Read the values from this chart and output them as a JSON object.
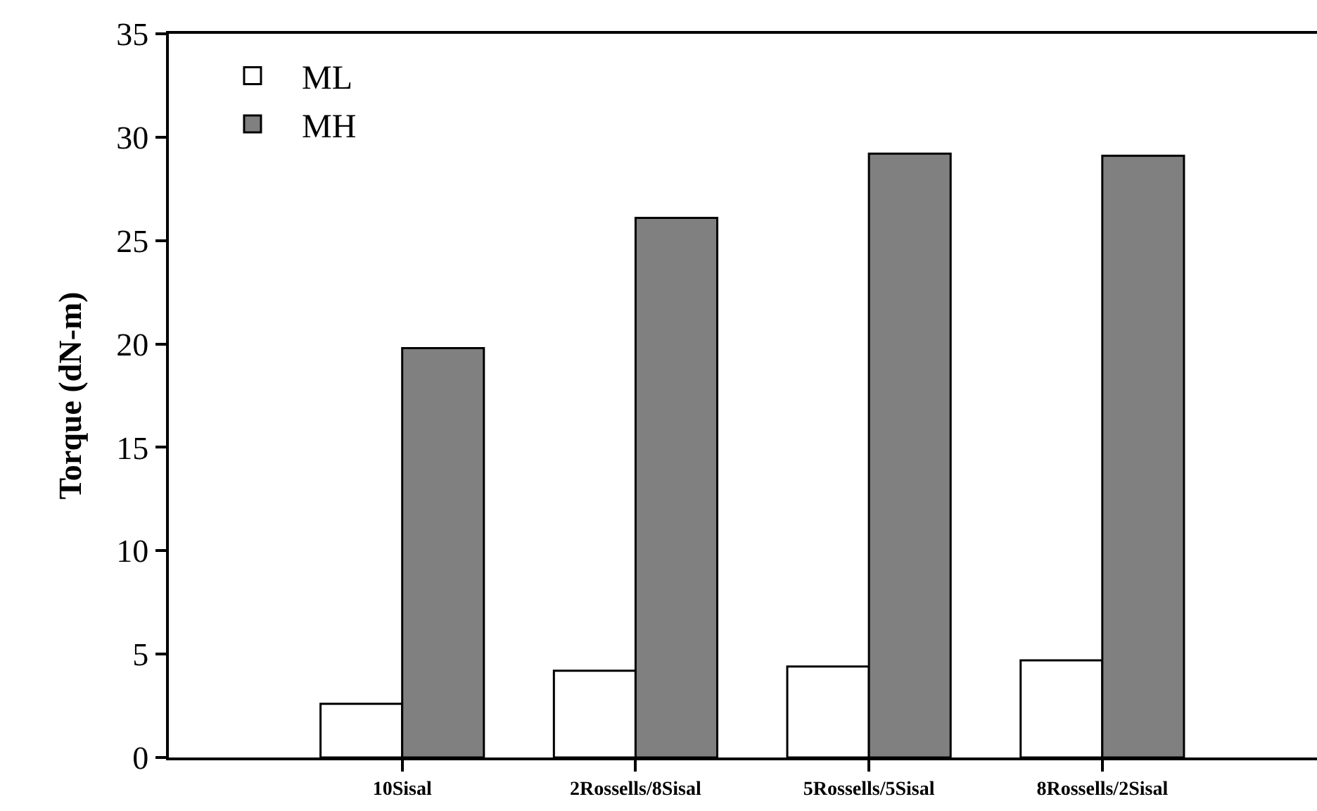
{
  "chart_data": {
    "type": "bar",
    "ylabel": "Torque (dN-m)",
    "categories": [
      "10Sisal",
      "2Rossells/8Sisal",
      "5Rossells/5Sisal",
      "8Rossells/2Sisal"
    ],
    "series": [
      {
        "name": "ML",
        "color": "#ffffff",
        "values": [
          2.6,
          4.2,
          4.4,
          4.7
        ]
      },
      {
        "name": "MH",
        "color": "#808080",
        "values": [
          19.8,
          26.1,
          29.2,
          29.1
        ]
      }
    ],
    "ylim": [
      0,
      35
    ],
    "yticks": [
      0,
      5,
      10,
      15,
      20,
      25,
      30,
      35
    ],
    "grid": false,
    "legend": "top left"
  }
}
